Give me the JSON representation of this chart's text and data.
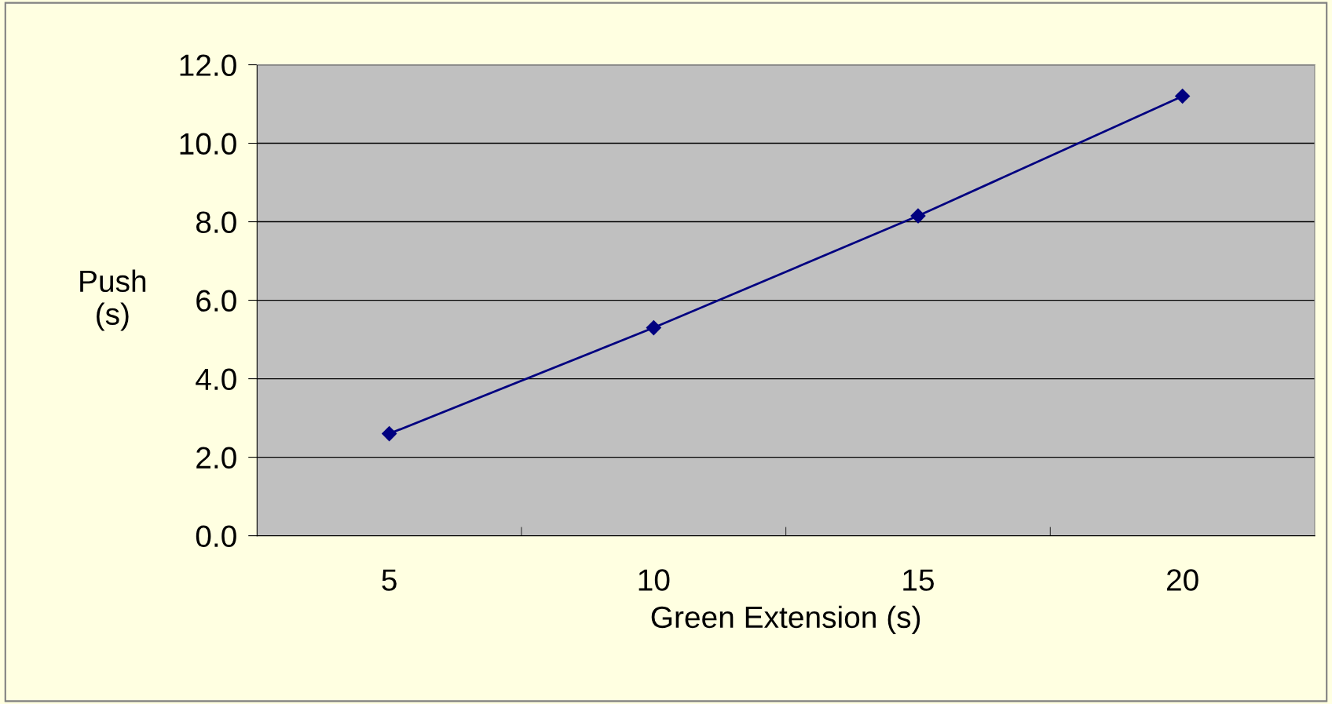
{
  "chart_data": {
    "type": "line",
    "xlabel": "Green Extension (s)",
    "ylabel": "Push\n(s)",
    "categories": [
      "5",
      "10",
      "15",
      "20"
    ],
    "series": [
      {
        "color": "#000080",
        "values": [
          2.6,
          5.3,
          8.15,
          11.2
        ]
      }
    ],
    "ylim": [
      0,
      12
    ],
    "yticks": [
      {
        "value": 0,
        "label": "0.0"
      },
      {
        "value": 2,
        "label": "2.0"
      },
      {
        "value": 4,
        "label": "4.0"
      },
      {
        "value": 6,
        "label": "6.0"
      },
      {
        "value": 8,
        "label": "8.0"
      },
      {
        "value": 10,
        "label": "10.0"
      },
      {
        "value": 12,
        "label": "12.0"
      }
    ],
    "grid": "y",
    "marker": "diamond",
    "line_style": "solid",
    "legend": false
  }
}
